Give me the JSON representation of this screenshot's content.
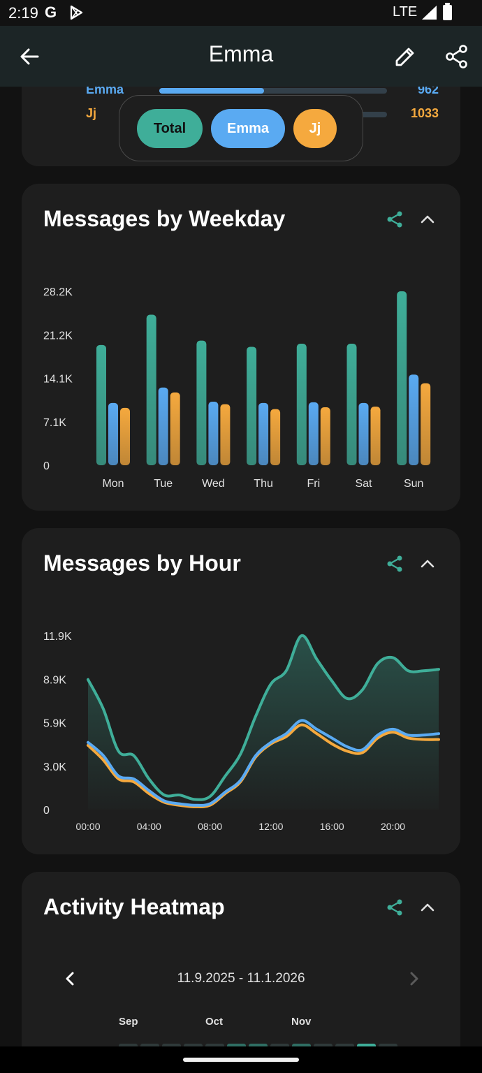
{
  "status": {
    "time": "2:19",
    "network": "LTE",
    "g_label": "G"
  },
  "app_bar": {
    "title": "Emma"
  },
  "top_card": {
    "rows": [
      {
        "name": "Emma",
        "value": "962",
        "fraction": 0.46,
        "color": "#5aaaf2"
      },
      {
        "name": "Jj",
        "value": "1033",
        "fraction": 0.54,
        "color": "#f5a93e"
      }
    ]
  },
  "filter_chips": [
    {
      "label": "Total",
      "color": "#3fae99",
      "text_color": "#111111"
    },
    {
      "label": "Emma",
      "color": "#5aaaf2",
      "text_color": "#ffffff"
    },
    {
      "label": "Jj",
      "color": "#f5a93e",
      "text_color": "#ffffff"
    }
  ],
  "weekday_card": {
    "title": "Messages by Weekday"
  },
  "hour_card": {
    "title": "Messages by Hour"
  },
  "heatmap_card": {
    "title": "Activity Heatmap",
    "range": "11.9.2025 - 11.1.2026",
    "months": [
      "Sep",
      "Oct",
      "Nov"
    ]
  },
  "colors": {
    "total": "#3fae99",
    "emma": "#5aaaf2",
    "jj": "#f5a93e"
  },
  "chart_data": [
    {
      "type": "bar",
      "title": "Messages by Weekday",
      "categories": [
        "Mon",
        "Tue",
        "Wed",
        "Thu",
        "Fri",
        "Sat",
        "Sun"
      ],
      "yticks": [
        "0",
        "7.1K",
        "14.1K",
        "21.2K",
        "28.2K"
      ],
      "ylim": [
        0,
        28200
      ],
      "series": [
        {
          "name": "Total",
          "values": [
            19500,
            24400,
            20200,
            19200,
            19700,
            19700,
            28200
          ]
        },
        {
          "name": "Emma",
          "values": [
            10100,
            12600,
            10300,
            10100,
            10200,
            10100,
            14700
          ]
        },
        {
          "name": "Jj",
          "values": [
            9300,
            11800,
            9900,
            9100,
            9400,
            9500,
            13300
          ]
        }
      ],
      "grid": false,
      "legend": "none"
    },
    {
      "type": "area",
      "title": "Messages by Hour",
      "x": [
        0,
        1,
        2,
        3,
        4,
        5,
        6,
        7,
        8,
        9,
        10,
        11,
        12,
        13,
        14,
        15,
        16,
        17,
        18,
        19,
        20,
        21,
        22,
        23
      ],
      "xticks": [
        "00:00",
        "04:00",
        "08:00",
        "12:00",
        "16:00",
        "20:00"
      ],
      "yticks": [
        "0",
        "3.0K",
        "5.9K",
        "8.9K",
        "11.9K"
      ],
      "ylim": [
        0,
        11900
      ],
      "series": [
        {
          "name": "Total",
          "values": [
            8900,
            6900,
            4000,
            3700,
            2100,
            1000,
            1000,
            700,
            900,
            2300,
            3800,
            6400,
            8600,
            9500,
            11900,
            10300,
            8800,
            7600,
            8200,
            10000,
            10400,
            9500,
            9500,
            9600
          ]
        },
        {
          "name": "Emma",
          "values": [
            4600,
            3700,
            2300,
            2100,
            1300,
            600,
            400,
            300,
            400,
            1200,
            2000,
            3700,
            4600,
            5200,
            6100,
            5500,
            4900,
            4300,
            4100,
            5100,
            5500,
            5100,
            5100,
            5200
          ]
        },
        {
          "name": "Jj",
          "values": [
            4400,
            3400,
            2100,
            1900,
            1100,
            500,
            300,
            200,
            300,
            1100,
            1900,
            3600,
            4500,
            5000,
            5800,
            5200,
            4500,
            4000,
            3900,
            4900,
            5300,
            4900,
            4800,
            4800
          ]
        }
      ],
      "grid": false,
      "legend": "none"
    }
  ]
}
